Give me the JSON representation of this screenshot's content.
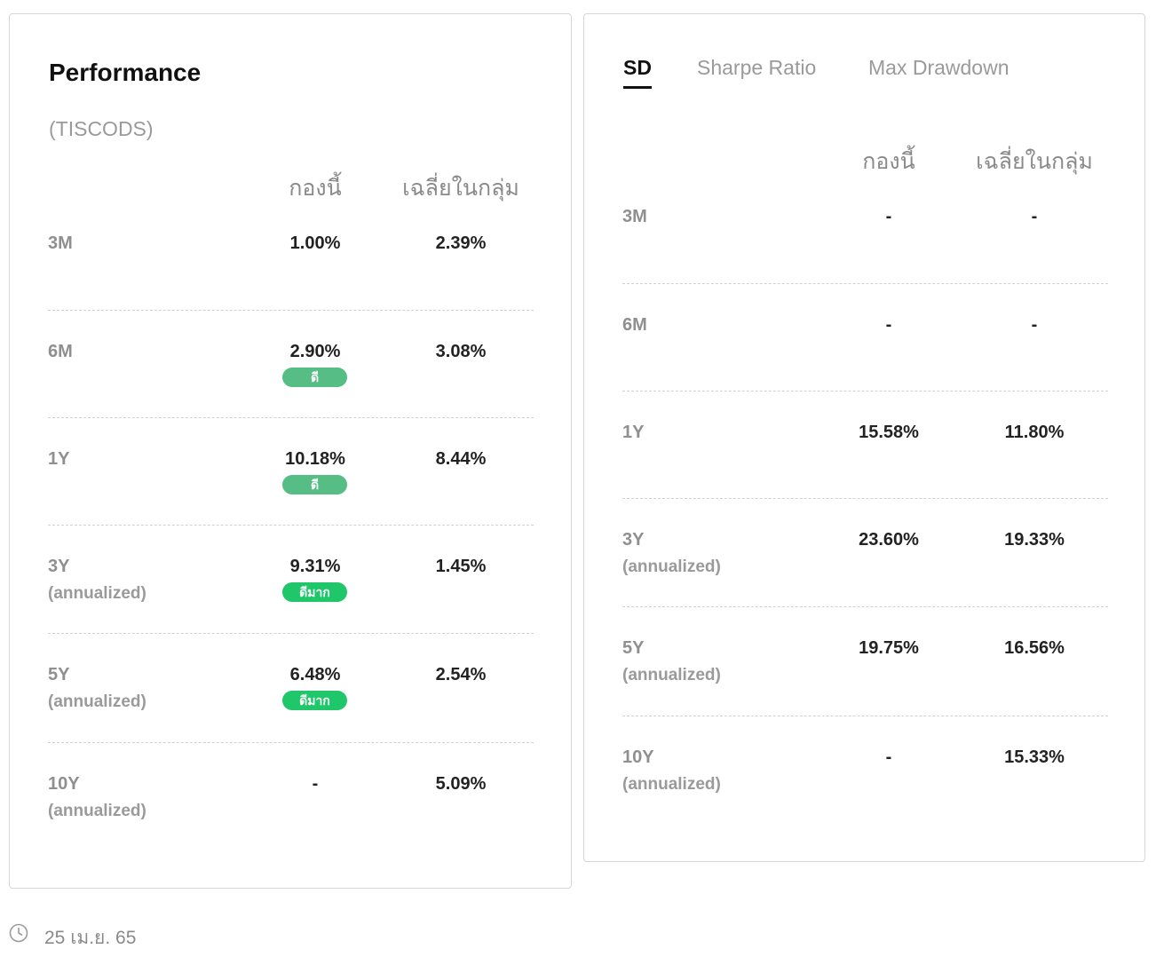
{
  "performance": {
    "title": "Performance",
    "fund_code": "(TISCODS)",
    "col_fund": "กองนี้",
    "col_avg": "เฉลี่ยในกลุ่ม",
    "rows": [
      {
        "period": "3M",
        "sub": "",
        "fund": "1.00%",
        "avg": "2.39%",
        "badge": ""
      },
      {
        "period": "6M",
        "sub": "",
        "fund": "2.90%",
        "avg": "3.08%",
        "badge": "ดี"
      },
      {
        "period": "1Y",
        "sub": "",
        "fund": "10.18%",
        "avg": "8.44%",
        "badge": "ดี"
      },
      {
        "period": "3Y",
        "sub": "(annualized)",
        "fund": "9.31%",
        "avg": "1.45%",
        "badge": "ดีมาก"
      },
      {
        "period": "5Y",
        "sub": "(annualized)",
        "fund": "6.48%",
        "avg": "2.54%",
        "badge": "ดีมาก"
      },
      {
        "period": "10Y",
        "sub": "(annualized)",
        "fund": "-",
        "avg": "5.09%",
        "badge": ""
      }
    ]
  },
  "risk": {
    "tabs": [
      {
        "label": "SD",
        "active": true
      },
      {
        "label": "Sharpe Ratio",
        "active": false
      },
      {
        "label": "Max Drawdown",
        "active": false
      }
    ],
    "col_fund": "กองนี้",
    "col_avg": "เฉลี่ยในกลุ่ม",
    "rows": [
      {
        "period": "3M",
        "sub": "",
        "fund": "-",
        "avg": "-"
      },
      {
        "period": "6M",
        "sub": "",
        "fund": "-",
        "avg": "-"
      },
      {
        "period": "1Y",
        "sub": "",
        "fund": "15.58%",
        "avg": "11.80%"
      },
      {
        "period": "3Y",
        "sub": "(annualized)",
        "fund": "23.60%",
        "avg": "19.33%"
      },
      {
        "period": "5Y",
        "sub": "(annualized)",
        "fund": "19.75%",
        "avg": "16.56%"
      },
      {
        "period": "10Y",
        "sub": "(annualized)",
        "fund": "-",
        "avg": "15.33%"
      }
    ]
  },
  "colors": {
    "badge_good": "#56bd84",
    "badge_very_good": "#1fc76a"
  },
  "icons": {
    "footer": "clock-icon"
  },
  "footer": {
    "date": "25 เม.ย. 65"
  }
}
